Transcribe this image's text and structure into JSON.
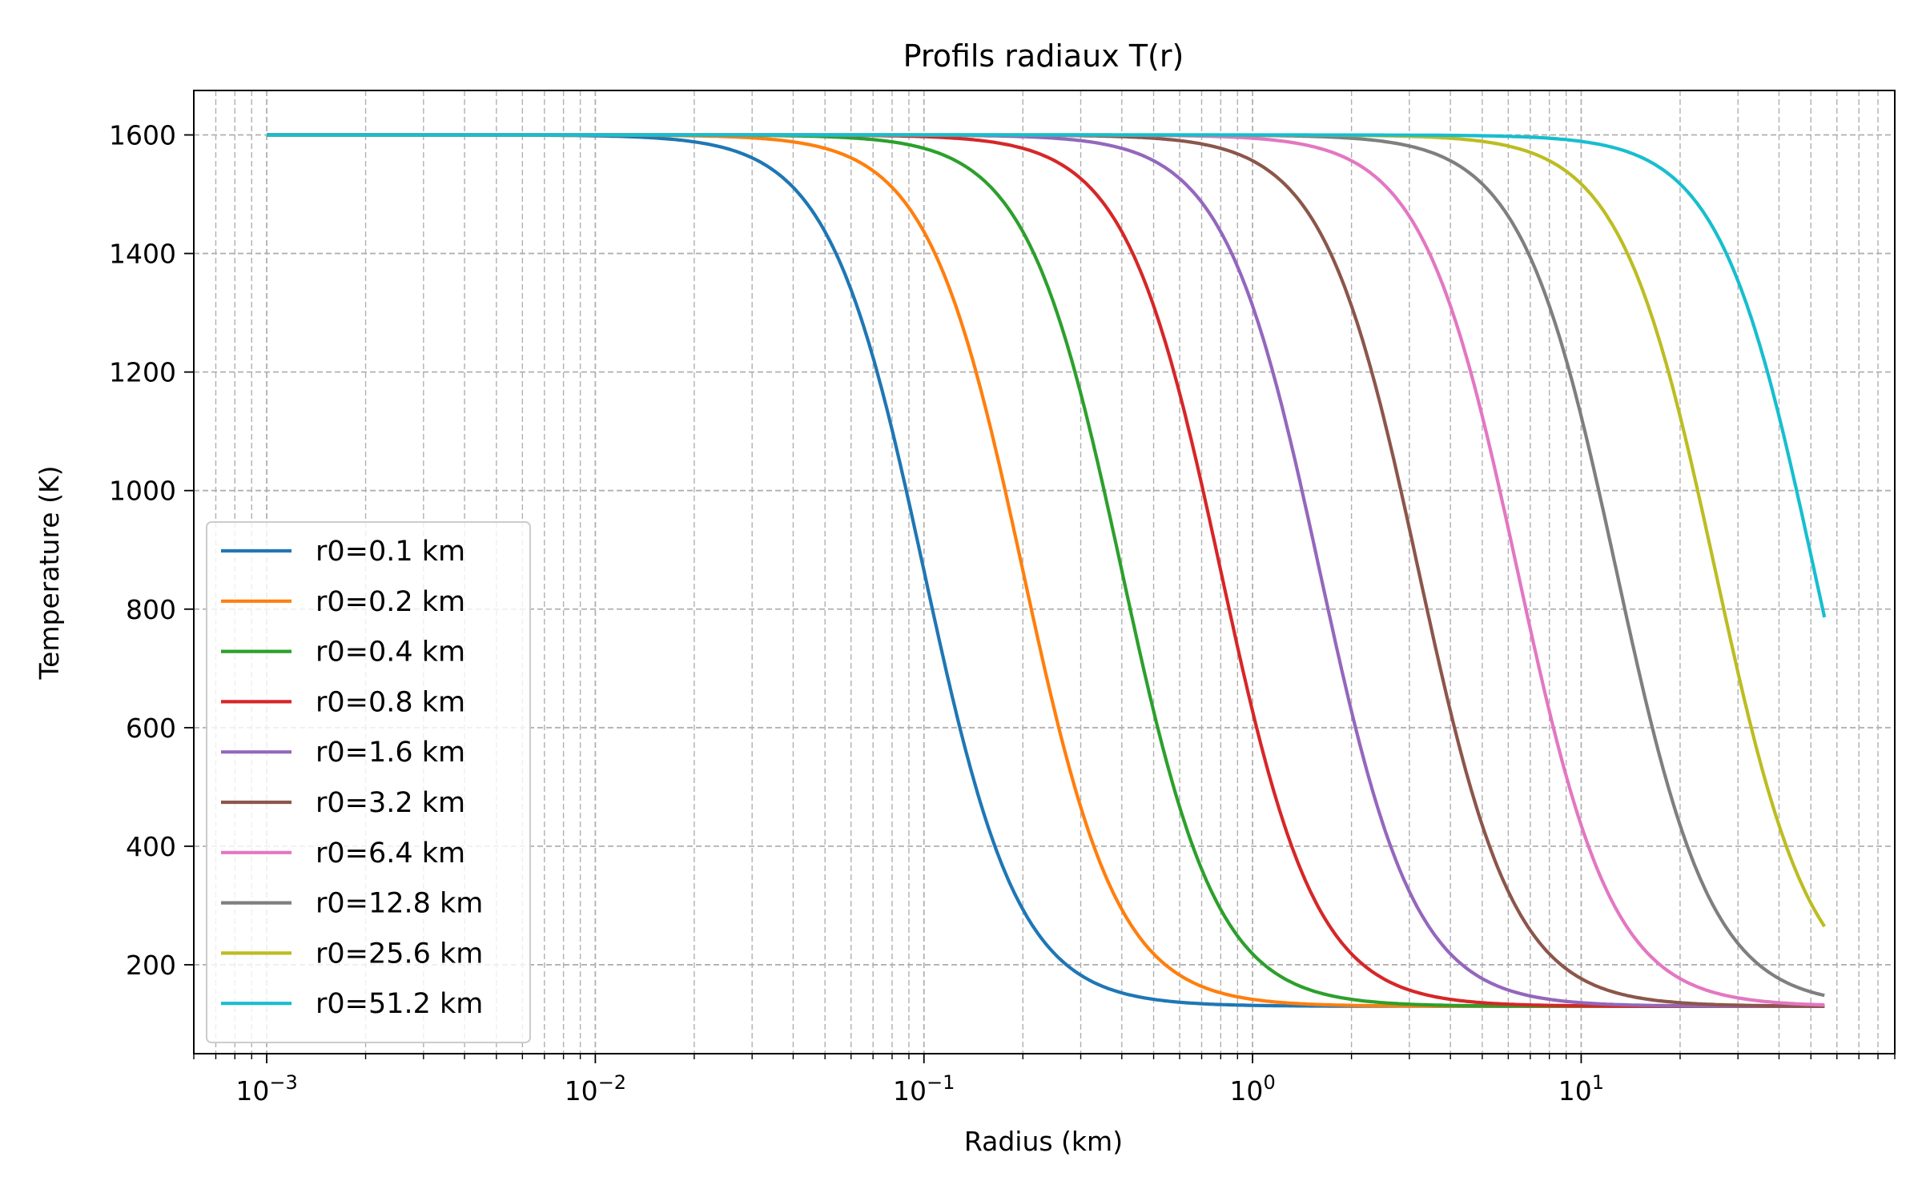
{
  "chart_data": {
    "type": "line",
    "title": "Profils radiaux T(r)",
    "xlabel": "Radius (km)",
    "ylabel": "Temperature (K)",
    "xscale": "log",
    "xlim": [
      0.0006,
      90
    ],
    "ylim": [
      50,
      1675
    ],
    "x_ticks": [
      {
        "value": 0.001,
        "base": "10",
        "exp": "−3"
      },
      {
        "value": 0.01,
        "base": "10",
        "exp": "−2"
      },
      {
        "value": 0.1,
        "base": "10",
        "exp": "−1"
      },
      {
        "value": 1,
        "base": "10",
        "exp": "0"
      },
      {
        "value": 10,
        "base": "10",
        "exp": "1"
      }
    ],
    "y_ticks": [
      "200",
      "400",
      "600",
      "800",
      "1000",
      "1200",
      "1400",
      "1600"
    ],
    "grid": true,
    "legend_position": "lower-left",
    "x_range": [
      0.001,
      55
    ],
    "T_max": 1600,
    "T_min": 130,
    "steepness": 3,
    "series": [
      {
        "name": "r0=0.1 km",
        "r0": 0.1,
        "color": "#1f77b4"
      },
      {
        "name": "r0=0.2 km",
        "r0": 0.2,
        "color": "#ff7f0e"
      },
      {
        "name": "r0=0.4 km",
        "r0": 0.4,
        "color": "#2ca02c"
      },
      {
        "name": "r0=0.8 km",
        "r0": 0.8,
        "color": "#d62728"
      },
      {
        "name": "r0=1.6 km",
        "r0": 1.6,
        "color": "#9467bd"
      },
      {
        "name": "r0=3.2 km",
        "r0": 3.2,
        "color": "#8c564b"
      },
      {
        "name": "r0=6.4 km",
        "r0": 6.4,
        "color": "#e377c2"
      },
      {
        "name": "r0=12.8 km",
        "r0": 12.8,
        "color": "#7f7f7f"
      },
      {
        "name": "r0=25.6 km",
        "r0": 25.6,
        "color": "#bcbd22"
      },
      {
        "name": "r0=51.2 km",
        "r0": 51.2,
        "color": "#17becf"
      }
    ]
  }
}
